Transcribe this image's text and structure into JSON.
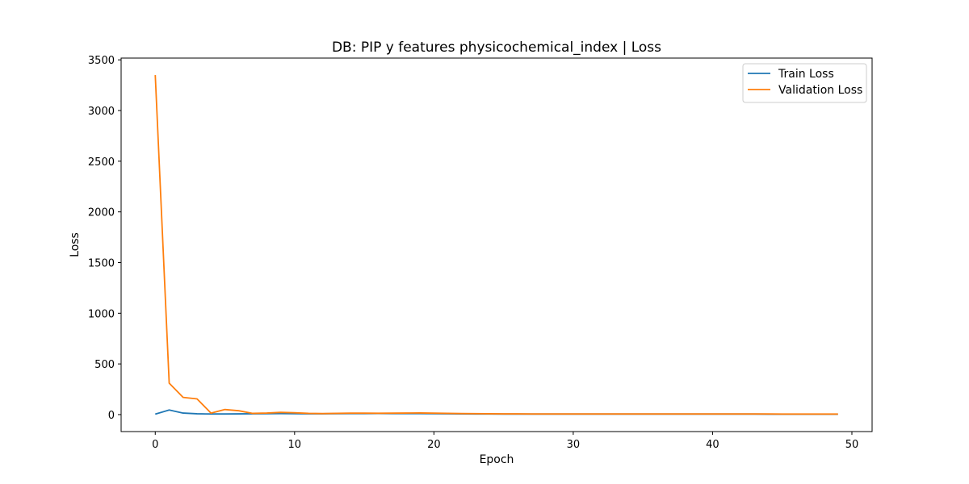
{
  "chart_data": {
    "type": "line",
    "title": "DB: PIP y features physicochemical_index | Loss",
    "xlabel": "Epoch",
    "ylabel": "Loss",
    "xlim": [
      -2.45,
      51.45
    ],
    "ylim": [
      -167.5,
      3517.5
    ],
    "xticks": [
      0,
      10,
      20,
      30,
      40,
      50
    ],
    "yticks": [
      0,
      500,
      1000,
      1500,
      2000,
      2500,
      3000,
      3500
    ],
    "grid": false,
    "legend_position": "top-right",
    "x": [
      0,
      1,
      2,
      3,
      4,
      5,
      6,
      7,
      8,
      9,
      10,
      11,
      12,
      13,
      14,
      15,
      16,
      17,
      18,
      19,
      20,
      21,
      22,
      23,
      24,
      25,
      26,
      27,
      28,
      29,
      30,
      31,
      32,
      33,
      34,
      35,
      36,
      37,
      38,
      39,
      40,
      41,
      42,
      43,
      44,
      45,
      46,
      47,
      48,
      49
    ],
    "series": [
      {
        "name": "Train Loss",
        "color": "#1f77b4",
        "values": [
          5,
          45,
          15,
          8,
          6,
          6,
          7,
          8,
          9,
          10,
          9,
          8,
          8,
          9,
          10,
          10,
          11,
          10,
          10,
          10,
          9,
          8,
          7,
          6,
          6,
          5,
          5,
          5,
          5,
          5,
          5,
          5,
          5,
          5,
          5,
          5,
          5,
          5,
          5,
          5,
          5,
          5,
          5,
          5,
          4,
          4,
          4,
          4,
          4,
          4
        ]
      },
      {
        "name": "Validation Loss",
        "color": "#ff7f0e",
        "values": [
          3350,
          310,
          170,
          155,
          15,
          50,
          38,
          12,
          15,
          22,
          18,
          12,
          10,
          12,
          14,
          14,
          13,
          14,
          15,
          16,
          14,
          12,
          10,
          9,
          8,
          7,
          7,
          6,
          6,
          6,
          6,
          6,
          6,
          6,
          6,
          6,
          6,
          6,
          6,
          6,
          6,
          6,
          6,
          6,
          6,
          5,
          5,
          5,
          5,
          5
        ]
      }
    ]
  }
}
